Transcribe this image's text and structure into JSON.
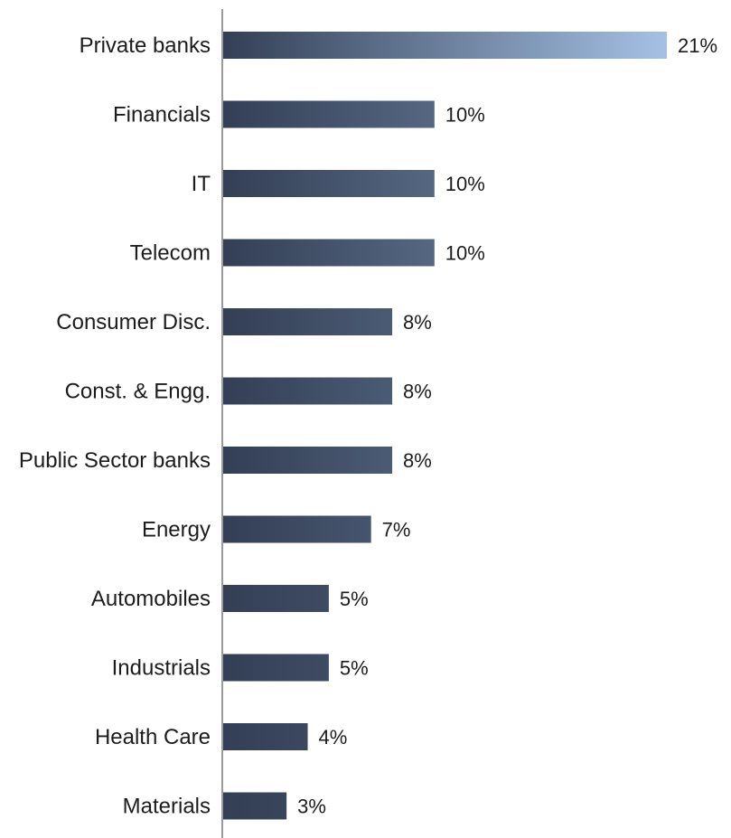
{
  "chart_data": {
    "type": "bar",
    "orientation": "horizontal",
    "categories": [
      "Private banks",
      "Financials",
      "IT",
      "Telecom",
      "Consumer Disc.",
      "Const. & Engg.",
      "Public Sector banks",
      "Energy",
      "Automobiles",
      "Industrials",
      "Health Care",
      "Materials"
    ],
    "values": [
      21,
      10,
      10,
      10,
      8,
      8,
      8,
      7,
      5,
      5,
      4,
      3
    ],
    "data_labels": [
      "21%",
      "10%",
      "10%",
      "10%",
      "8%",
      "8%",
      "8%",
      "7%",
      "5%",
      "5%",
      "4%",
      "3%"
    ],
    "unit": "%",
    "title": "",
    "xlabel": "",
    "ylabel": "",
    "xlim": [
      0,
      21
    ],
    "grid": false,
    "legend": "none",
    "colors": {
      "bar_start": "#333f55",
      "bar_end_max": "#a4c1e4",
      "axis": "#9a9a9a",
      "text": "#1c1c1c"
    }
  }
}
